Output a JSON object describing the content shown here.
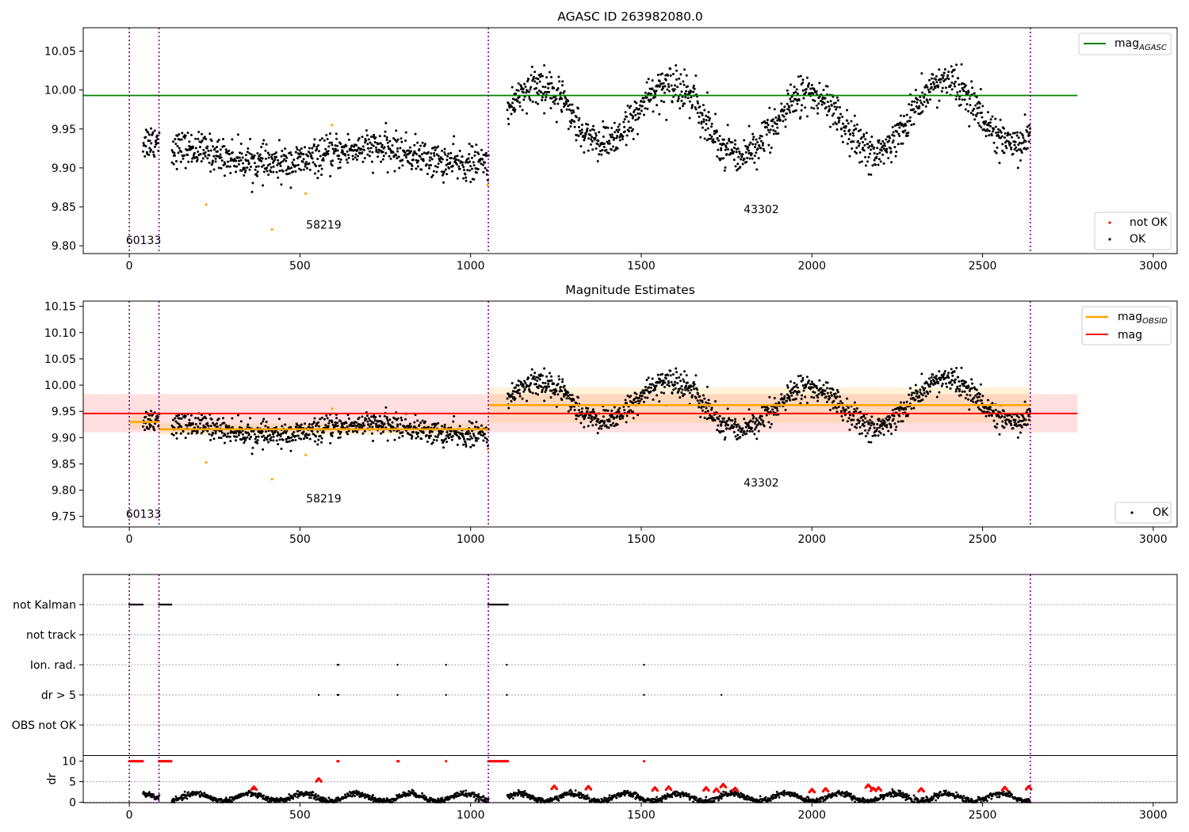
{
  "chart_data": [
    {
      "type": "scatter",
      "title": "AGASC ID 263982080.0",
      "xlim": [
        -135,
        3070
      ],
      "ylim": [
        9.79,
        10.08
      ],
      "xticks": [
        "0",
        "500",
        "1000",
        "1500",
        "2000",
        "2500",
        "3000"
      ],
      "yticks": [
        "9.80",
        "9.85",
        "9.90",
        "9.95",
        "10.00",
        "10.05"
      ],
      "vlines": [
        0,
        87,
        1052,
        2640
      ],
      "reference_line": {
        "label": "mag",
        "label_sub": "AGASC",
        "value": 9.993,
        "x_range": [
          -135,
          2778
        ],
        "color": "#008000"
      },
      "legend_main": [
        {
          "label": "mag",
          "label_sub": "AGASC",
          "color": "#008000"
        }
      ],
      "legend_points": [
        {
          "label": "not OK",
          "color": "#ff0000"
        },
        {
          "label": "OK",
          "color": "#000000"
        }
      ],
      "annotations": [
        {
          "text": "60133",
          "x": -10,
          "y": 9.802
        },
        {
          "text": "58219",
          "x": 518,
          "y": 9.822
        },
        {
          "text": "43302",
          "x": 1800,
          "y": 9.842
        }
      ],
      "outliers": [
        {
          "x": 225,
          "y": 9.853
        },
        {
          "x": 418,
          "y": 9.821
        },
        {
          "x": 517,
          "y": 9.867
        },
        {
          "x": 594,
          "y": 9.955
        },
        {
          "x": 1050,
          "y": 9.878
        }
      ],
      "segments": [
        {
          "start": 40,
          "end": 87,
          "mean": 9.93,
          "amp": 0.008,
          "noise": 0.012,
          "n": 40
        },
        {
          "start": 125,
          "end": 1052,
          "mean": 9.915,
          "amp": 0.01,
          "noise": 0.011,
          "n": 760
        },
        {
          "start": 1107,
          "end": 2640,
          "mean": 9.963,
          "amp": 0.045,
          "noise": 0.012,
          "n": 1250
        }
      ]
    },
    {
      "type": "scatter",
      "title": "Magnitude Estimates",
      "xlim": [
        -135,
        3070
      ],
      "ylim": [
        9.73,
        10.16
      ],
      "xticks": [
        "0",
        "500",
        "1000",
        "1500",
        "2000",
        "2500",
        "3000"
      ],
      "yticks": [
        "9.75",
        "9.80",
        "9.85",
        "9.90",
        "9.95",
        "10.00",
        "10.05",
        "10.10",
        "10.15"
      ],
      "vlines": [
        0,
        87,
        1052,
        2640
      ],
      "mag_line": {
        "label": "mag",
        "value": 9.946,
        "band": [
          9.91,
          9.983
        ],
        "x_range": [
          -135,
          2778
        ],
        "color": "#ff0000"
      },
      "obsid_steps": [
        {
          "x0": 0,
          "x1": 87,
          "value": 9.93,
          "band": [
            9.916,
            9.944
          ]
        },
        {
          "x0": 87,
          "x1": 1052,
          "value": 9.916,
          "band": [
            9.905,
            9.927
          ]
        },
        {
          "x0": 1052,
          "x1": 2640,
          "value": 9.962,
          "band": [
            9.928,
            9.996
          ]
        }
      ],
      "legend_main": [
        {
          "label": "mag",
          "label_sub": "OBSID",
          "color": "#ffa500"
        },
        {
          "label": "mag",
          "color": "#ff0000"
        }
      ],
      "legend_points": [
        {
          "label": "OK",
          "color": "#000000"
        }
      ],
      "annotations": [
        {
          "text": "60133",
          "x": -10,
          "y": 9.747
        },
        {
          "text": "58219",
          "x": 518,
          "y": 9.777
        },
        {
          "text": "43302",
          "x": 1800,
          "y": 9.807
        }
      ],
      "outliers": [
        {
          "x": 225,
          "y": 9.853
        },
        {
          "x": 418,
          "y": 9.821
        },
        {
          "x": 517,
          "y": 9.867
        },
        {
          "x": 594,
          "y": 9.955
        },
        {
          "x": 1050,
          "y": 9.878
        }
      ]
    },
    {
      "type": "scatter",
      "title": "",
      "xlim": [
        -135,
        3070
      ],
      "xticks": [
        "0",
        "500",
        "1000",
        "1500",
        "2000",
        "2500",
        "3000"
      ],
      "flag_categories": [
        "not Kalman",
        "not track",
        "Ion. rad.",
        "dr > 5",
        "OBS not OK"
      ],
      "flag_points": {
        "not Kalman": [
          [
            0,
            40
          ],
          [
            87,
            125
          ],
          [
            1052,
            1110
          ]
        ],
        "not track": [],
        "Ion. rad.": [
          [
            610
          ],
          [
            613
          ],
          [
            786
          ],
          [
            928
          ],
          [
            1106
          ],
          [
            1508
          ]
        ],
        "dr > 5": [
          [
            555
          ],
          [
            610
          ],
          [
            613
          ],
          [
            786
          ],
          [
            928
          ],
          [
            1106
          ],
          [
            1508
          ],
          [
            1735
          ]
        ],
        "OBS not OK": []
      },
      "dr_ylabel": "dr",
      "dr_ylim": [
        -0.5,
        11
      ],
      "dr_yticks": [
        "0",
        "5",
        "10"
      ],
      "dr_high_value": 10,
      "dr_high_ranges": [
        [
          0,
          40
        ],
        [
          87,
          125
        ],
        [
          610,
          615
        ],
        [
          786,
          790
        ],
        [
          928,
          930
        ],
        [
          1052,
          1110
        ],
        [
          1508,
          1510
        ]
      ],
      "dr_red_clusters": [
        {
          "x": 365,
          "y": 3.8
        },
        {
          "x": 555,
          "y": 5.8
        },
        {
          "x": 1245,
          "y": 4.0
        },
        {
          "x": 1345,
          "y": 3.9
        },
        {
          "x": 1540,
          "y": 3.6
        },
        {
          "x": 1580,
          "y": 3.8
        },
        {
          "x": 1690,
          "y": 3.6
        },
        {
          "x": 1720,
          "y": 3.3
        },
        {
          "x": 1740,
          "y": 4.4
        },
        {
          "x": 1775,
          "y": 3.5
        },
        {
          "x": 2000,
          "y": 3.2
        },
        {
          "x": 2040,
          "y": 3.4
        },
        {
          "x": 2165,
          "y": 4.3
        },
        {
          "x": 2180,
          "y": 3.5
        },
        {
          "x": 2195,
          "y": 3.6
        },
        {
          "x": 2320,
          "y": 3.4
        },
        {
          "x": 2565,
          "y": 3.7
        },
        {
          "x": 2635,
          "y": 3.9
        }
      ]
    }
  ]
}
